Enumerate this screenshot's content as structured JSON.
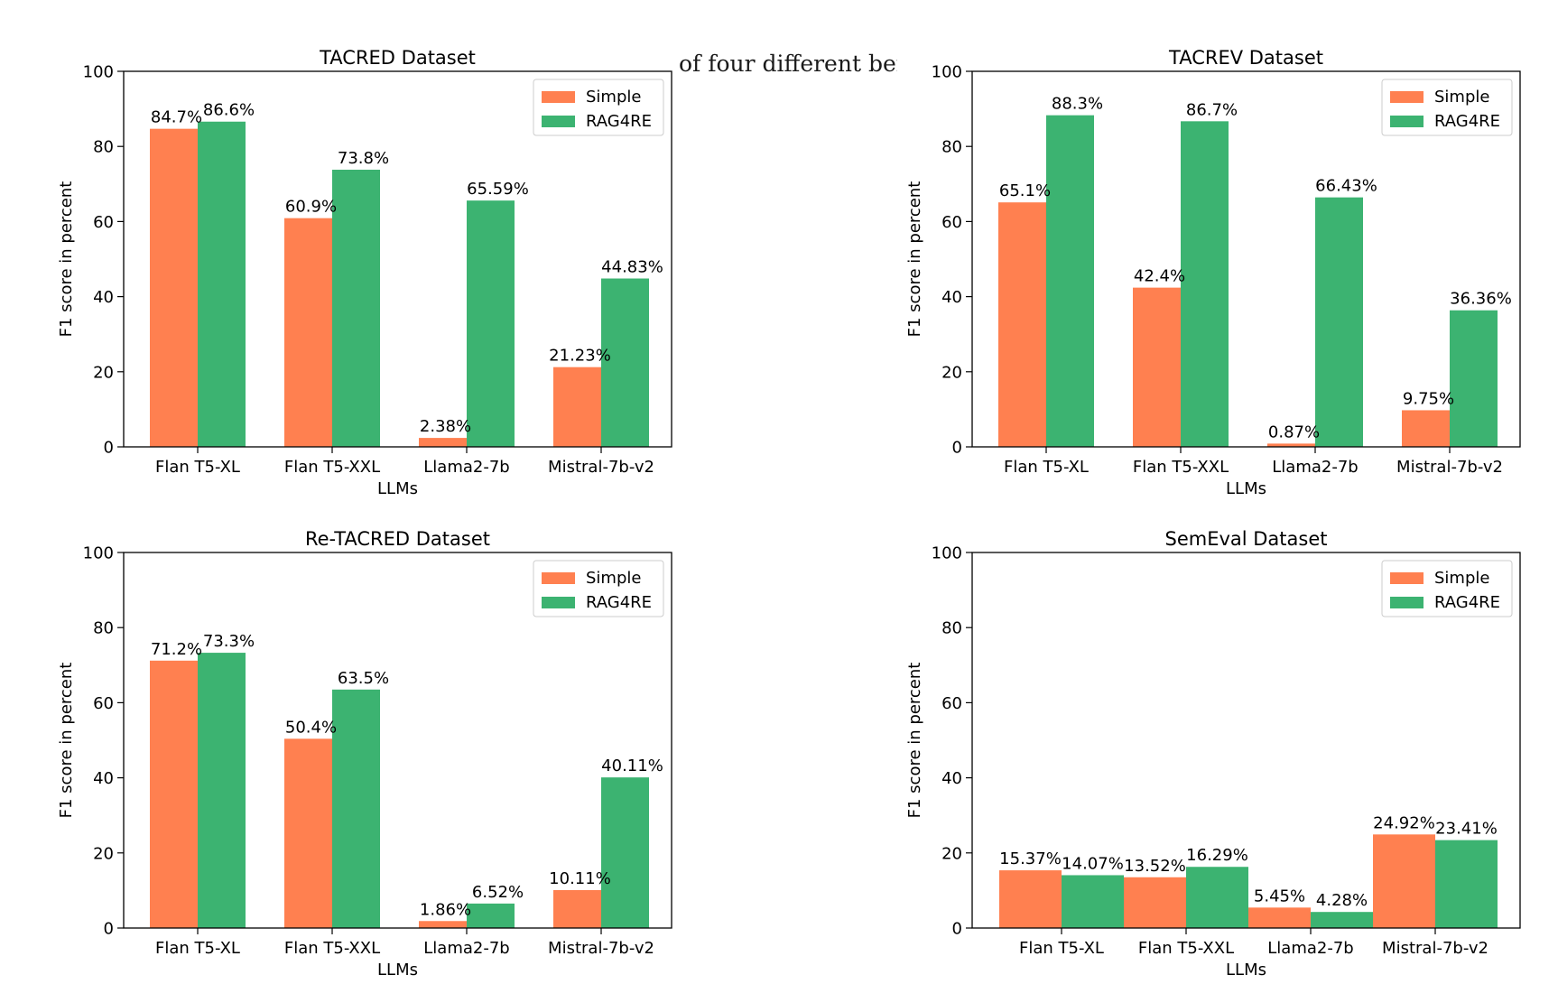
{
  "overlay_text": "of four different bench",
  "colors": {
    "simple": "#FF8050",
    "rag4re": "#3CB371",
    "axis": "#000000"
  },
  "chart_data": [
    {
      "type": "bar",
      "title": "TACRED Dataset",
      "xlabel": "LLMs",
      "ylabel": "F1 score in percent",
      "ylim": [
        0,
        100
      ],
      "yticks": [
        0,
        20,
        40,
        60,
        80,
        100
      ],
      "categories": [
        "Flan T5-XL",
        "Flan T5-XXL",
        "Llama2-7b",
        "Mistral-7b-v2"
      ],
      "legend": "top-right",
      "series": [
        {
          "name": "Simple",
          "values": [
            84.7,
            60.9,
            2.38,
            21.23
          ],
          "labels": [
            "84.7%",
            "60.9%",
            "2.38%",
            "21.23%"
          ]
        },
        {
          "name": "RAG4RE",
          "values": [
            86.6,
            73.8,
            65.59,
            44.83
          ],
          "labels": [
            "86.6%",
            "73.8%",
            "65.59%",
            "44.83%"
          ]
        }
      ]
    },
    {
      "type": "bar",
      "title": "TACREV Dataset",
      "xlabel": "LLMs",
      "ylabel": "F1 score in percent",
      "ylim": [
        0,
        100
      ],
      "yticks": [
        0,
        20,
        40,
        60,
        80,
        100
      ],
      "categories": [
        "Flan T5-XL",
        "Flan T5-XXL",
        "Llama2-7b",
        "Mistral-7b-v2"
      ],
      "legend": "top-right",
      "series": [
        {
          "name": "Simple",
          "values": [
            65.1,
            42.4,
            0.87,
            9.75
          ],
          "labels": [
            "65.1%",
            "42.4%",
            "0.87%",
            "9.75%"
          ]
        },
        {
          "name": "RAG4RE",
          "values": [
            88.3,
            86.7,
            66.43,
            36.36
          ],
          "labels": [
            "88.3%",
            "86.7%",
            "66.43%",
            "36.36%"
          ]
        }
      ]
    },
    {
      "type": "bar",
      "title": "Re-TACRED Dataset",
      "xlabel": "LLMs",
      "ylabel": "F1 score in percent",
      "ylim": [
        0,
        100
      ],
      "yticks": [
        0,
        20,
        40,
        60,
        80,
        100
      ],
      "categories": [
        "Flan T5-XL",
        "Flan T5-XXL",
        "Llama2-7b",
        "Mistral-7b-v2"
      ],
      "legend": "top-right",
      "series": [
        {
          "name": "Simple",
          "values": [
            71.2,
            50.4,
            1.86,
            10.11
          ],
          "labels": [
            "71.2%",
            "50.4%",
            "1.86%",
            "10.11%"
          ]
        },
        {
          "name": "RAG4RE",
          "values": [
            73.3,
            63.5,
            6.52,
            40.11
          ],
          "labels": [
            "73.3%",
            "63.5%",
            "6.52%",
            "40.11%"
          ]
        }
      ]
    },
    {
      "type": "bar",
      "title": "SemEval Dataset",
      "xlabel": "LLMs",
      "ylabel": "F1 score in percent",
      "ylim": [
        0,
        100
      ],
      "yticks": [
        0,
        20,
        40,
        60,
        80,
        100
      ],
      "categories": [
        "Flan T5-XL",
        "Flan T5-XXL",
        "Llama2-7b",
        "Mistral-7b-v2"
      ],
      "legend": "top-right",
      "series": [
        {
          "name": "Simple",
          "values": [
            15.37,
            13.52,
            5.45,
            24.92
          ],
          "labels": [
            "15.37%",
            "13.52%",
            "5.45%",
            "24.92%"
          ]
        },
        {
          "name": "RAG4RE",
          "values": [
            14.07,
            16.29,
            4.28,
            23.41
          ],
          "labels": [
            "14.07%",
            "16.29%",
            "4.28%",
            "23.41%"
          ]
        }
      ]
    }
  ]
}
